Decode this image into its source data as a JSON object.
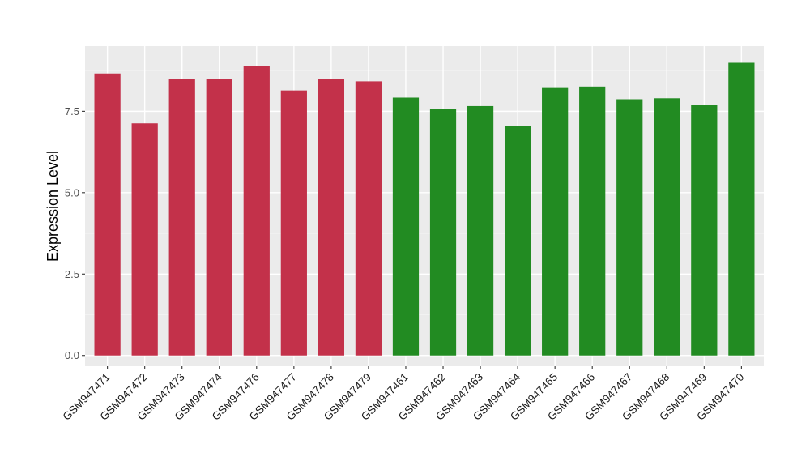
{
  "chart_data": {
    "type": "bar",
    "title": "",
    "xlabel": "",
    "ylabel": "Expression Level",
    "ylim": [
      -0.33,
      9.5
    ],
    "yticks": [
      0.0,
      2.5,
      5.0,
      7.5
    ],
    "ytick_labels": [
      "0.0",
      "2.5",
      "5.0",
      "7.5"
    ],
    "grid": true,
    "legend": "none",
    "colors": {
      "group_a": "#C3314A",
      "group_b": "#228B22",
      "panel_background": "#EBEBEB",
      "grid_major": "#FFFFFF"
    },
    "categories": [
      "GSM947471",
      "GSM947472",
      "GSM947473",
      "GSM947474",
      "GSM947476",
      "GSM947477",
      "GSM947478",
      "GSM947479",
      "GSM947461",
      "GSM947462",
      "GSM947463",
      "GSM947464",
      "GSM947465",
      "GSM947466",
      "GSM947467",
      "GSM947468",
      "GSM947469",
      "GSM947470"
    ],
    "values": [
      8.66,
      7.13,
      8.5,
      8.5,
      8.9,
      8.14,
      8.5,
      8.42,
      7.92,
      7.56,
      7.66,
      7.06,
      8.24,
      8.26,
      7.87,
      7.9,
      7.7,
      8.99
    ],
    "groups": [
      "group_a",
      "group_a",
      "group_a",
      "group_a",
      "group_a",
      "group_a",
      "group_a",
      "group_a",
      "group_b",
      "group_b",
      "group_b",
      "group_b",
      "group_b",
      "group_b",
      "group_b",
      "group_b",
      "group_b",
      "group_b"
    ]
  }
}
